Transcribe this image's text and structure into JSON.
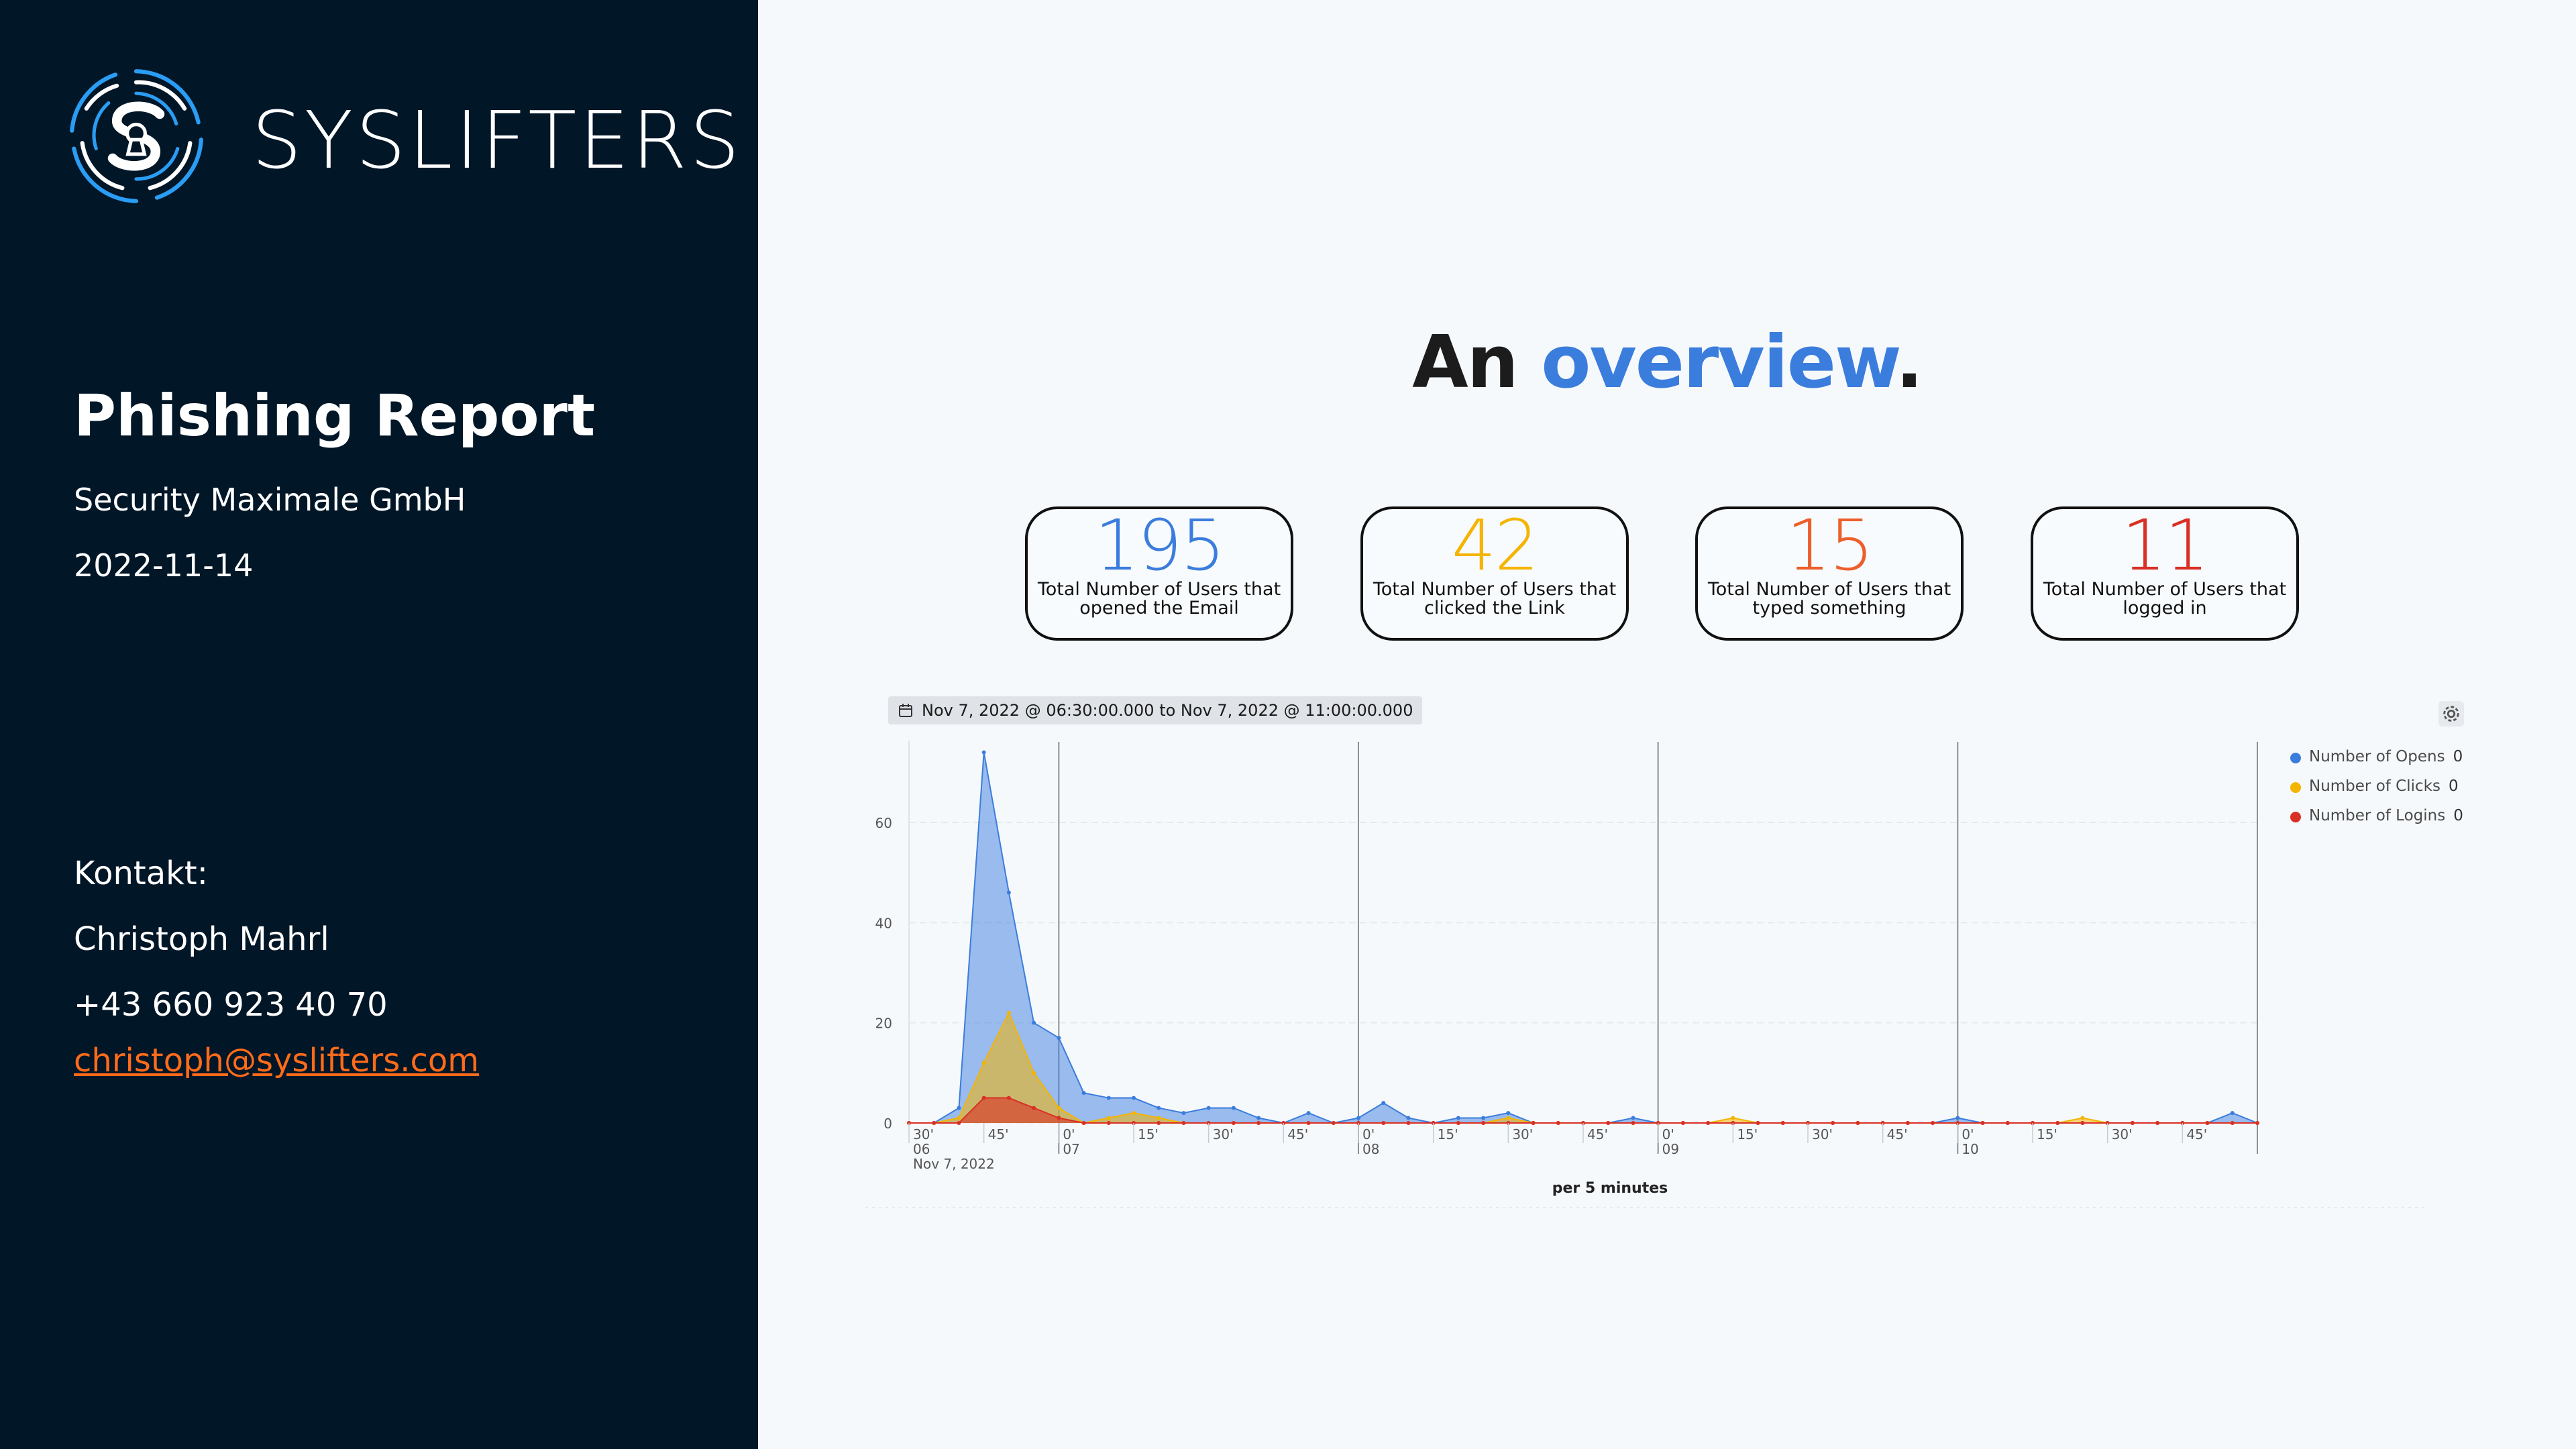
{
  "sidebar": {
    "brand": "SYSLIFTERS",
    "report_title": "Phishing Report",
    "company": "Security Maximale GmbH",
    "date": "2022-11-14",
    "contact_label": "Kontakt:",
    "contact_name": "Christoph Mahrl",
    "contact_phone": "+43 660 923 40 70",
    "contact_email": "christoph@syslifters.com",
    "colors": {
      "background": "#011627",
      "email": "#ff6b1a",
      "logo": "#2a9df4"
    }
  },
  "overview": {
    "prefix": "An",
    "highlight": "overview",
    "suffix": "."
  },
  "kpis": [
    {
      "value": "195",
      "caption": "Total Number of Users that opened the Email",
      "color": "#3b7ddd"
    },
    {
      "value": "42",
      "caption": "Total Number of Users that clicked the Link",
      "color": "#f4b400"
    },
    {
      "value": "15",
      "caption": "Total Number of Users that typed something",
      "color": "#ec5f2a"
    },
    {
      "value": "11",
      "caption": "Total Number of Users that logged in",
      "color": "#d93025"
    }
  ],
  "date_range": "Nov 7, 2022 @ 06:30:00.000 to Nov 7, 2022 @ 11:00:00.000",
  "chart_data": {
    "type": "area",
    "xlabel": "per 5 minutes",
    "ylim": [
      0,
      75
    ],
    "y_ticks": [
      0,
      20,
      40,
      60
    ],
    "grid": true,
    "legend_position": "top-right",
    "x_tick_labels": [
      "30'",
      "45'",
      "0'",
      "15'",
      "30'",
      "45'",
      "0'",
      "15'",
      "30'",
      "45'",
      "0'",
      "15'",
      "30'",
      "45'",
      "0'",
      "15'",
      "30'",
      "45'"
    ],
    "x_tick_minutes": [
      0,
      15,
      30,
      45,
      60,
      75,
      90,
      105,
      120,
      135,
      150,
      165,
      180,
      195,
      210,
      225,
      240,
      255
    ],
    "hour_labels": [
      {
        "minute": 0,
        "label": "06"
      },
      {
        "minute": 30,
        "label": "07"
      },
      {
        "minute": 90,
        "label": "08"
      },
      {
        "minute": 150,
        "label": "09"
      },
      {
        "minute": 210,
        "label": "10"
      }
    ],
    "date_label": "Nov 7, 2022",
    "x": [
      0,
      5,
      10,
      15,
      20,
      25,
      30,
      35,
      40,
      45,
      50,
      55,
      60,
      65,
      70,
      75,
      80,
      85,
      90,
      95,
      100,
      105,
      110,
      115,
      120,
      125,
      130,
      135,
      140,
      145,
      150,
      155,
      160,
      165,
      170,
      175,
      180,
      185,
      190,
      195,
      200,
      205,
      210,
      215,
      220,
      225,
      230,
      235,
      240,
      245,
      250,
      255,
      260,
      265,
      270
    ],
    "series": [
      {
        "name": "Number of Opens",
        "legend_value": "0",
        "color": "#3b7ddd",
        "values": [
          0,
          0,
          3,
          74,
          46,
          20,
          17,
          6,
          5,
          5,
          3,
          2,
          3,
          3,
          1,
          0,
          2,
          0,
          1,
          4,
          1,
          0,
          1,
          1,
          2,
          0,
          0,
          0,
          0,
          1,
          0,
          0,
          0,
          0,
          0,
          0,
          0,
          0,
          0,
          0,
          0,
          0,
          1,
          0,
          0,
          0,
          0,
          0,
          0,
          0,
          0,
          0,
          0,
          2,
          0
        ]
      },
      {
        "name": "Number of Clicks",
        "legend_value": "0",
        "color": "#f4b400",
        "values": [
          0,
          0,
          1,
          12,
          22,
          10,
          3,
          0,
          1,
          2,
          1,
          0,
          0,
          0,
          0,
          0,
          0,
          0,
          0,
          0,
          0,
          0,
          0,
          0,
          1,
          0,
          0,
          0,
          0,
          0,
          0,
          0,
          0,
          1,
          0,
          0,
          0,
          0,
          0,
          0,
          0,
          0,
          0,
          0,
          0,
          0,
          0,
          1,
          0,
          0,
          0,
          0,
          0,
          0,
          0
        ]
      },
      {
        "name": "Number of Logins",
        "legend_value": "0",
        "color": "#d93025",
        "values": [
          0,
          0,
          0,
          5,
          5,
          3,
          1,
          0,
          0,
          0,
          0,
          0,
          0,
          0,
          0,
          0,
          0,
          0,
          0,
          0,
          0,
          0,
          0,
          0,
          0,
          0,
          0,
          0,
          0,
          0,
          0,
          0,
          0,
          0,
          0,
          0,
          0,
          0,
          0,
          0,
          0,
          0,
          0,
          0,
          0,
          0,
          0,
          0,
          0,
          0,
          0,
          0,
          0,
          0,
          0
        ]
      }
    ]
  }
}
